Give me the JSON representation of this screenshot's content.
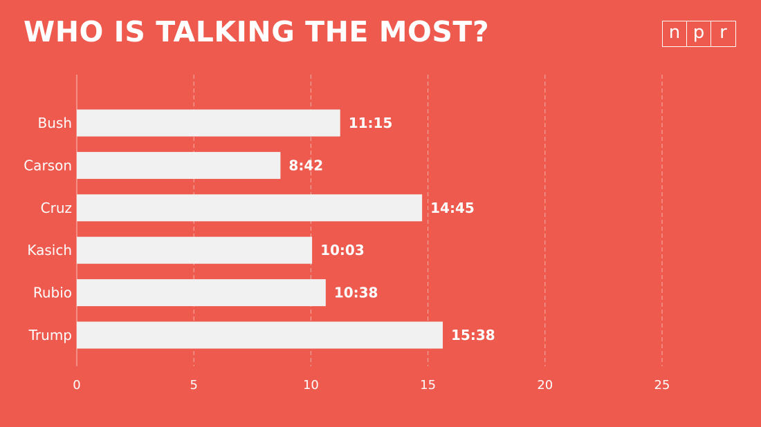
{
  "title": "WHO IS TALKING THE MOST?",
  "logo": [
    "n",
    "p",
    "r"
  ],
  "colors": {
    "background": "#EE5A4E",
    "bar": "#F1F1F1",
    "text": "#FFFFFF",
    "grid": "#F6B3AC"
  },
  "chart_data": {
    "type": "bar",
    "orientation": "horizontal",
    "title": "WHO IS TALKING THE MOST?",
    "categories": [
      "Bush",
      "Carson",
      "Cruz",
      "Kasich",
      "Rubio",
      "Trump"
    ],
    "values": [
      11.25,
      8.7,
      14.75,
      10.05,
      10.633,
      15.633
    ],
    "data_labels": [
      "11:15",
      "8:42",
      "14:45",
      "10:03",
      "10:38",
      "15:38"
    ],
    "xlim": [
      0,
      25
    ],
    "xticks": [
      0,
      5,
      10,
      15,
      20,
      25
    ],
    "xtick_labels": [
      "0",
      "5",
      "10",
      "15",
      "20",
      "25"
    ],
    "xlabel": "",
    "ylabel": "",
    "grid": true
  }
}
